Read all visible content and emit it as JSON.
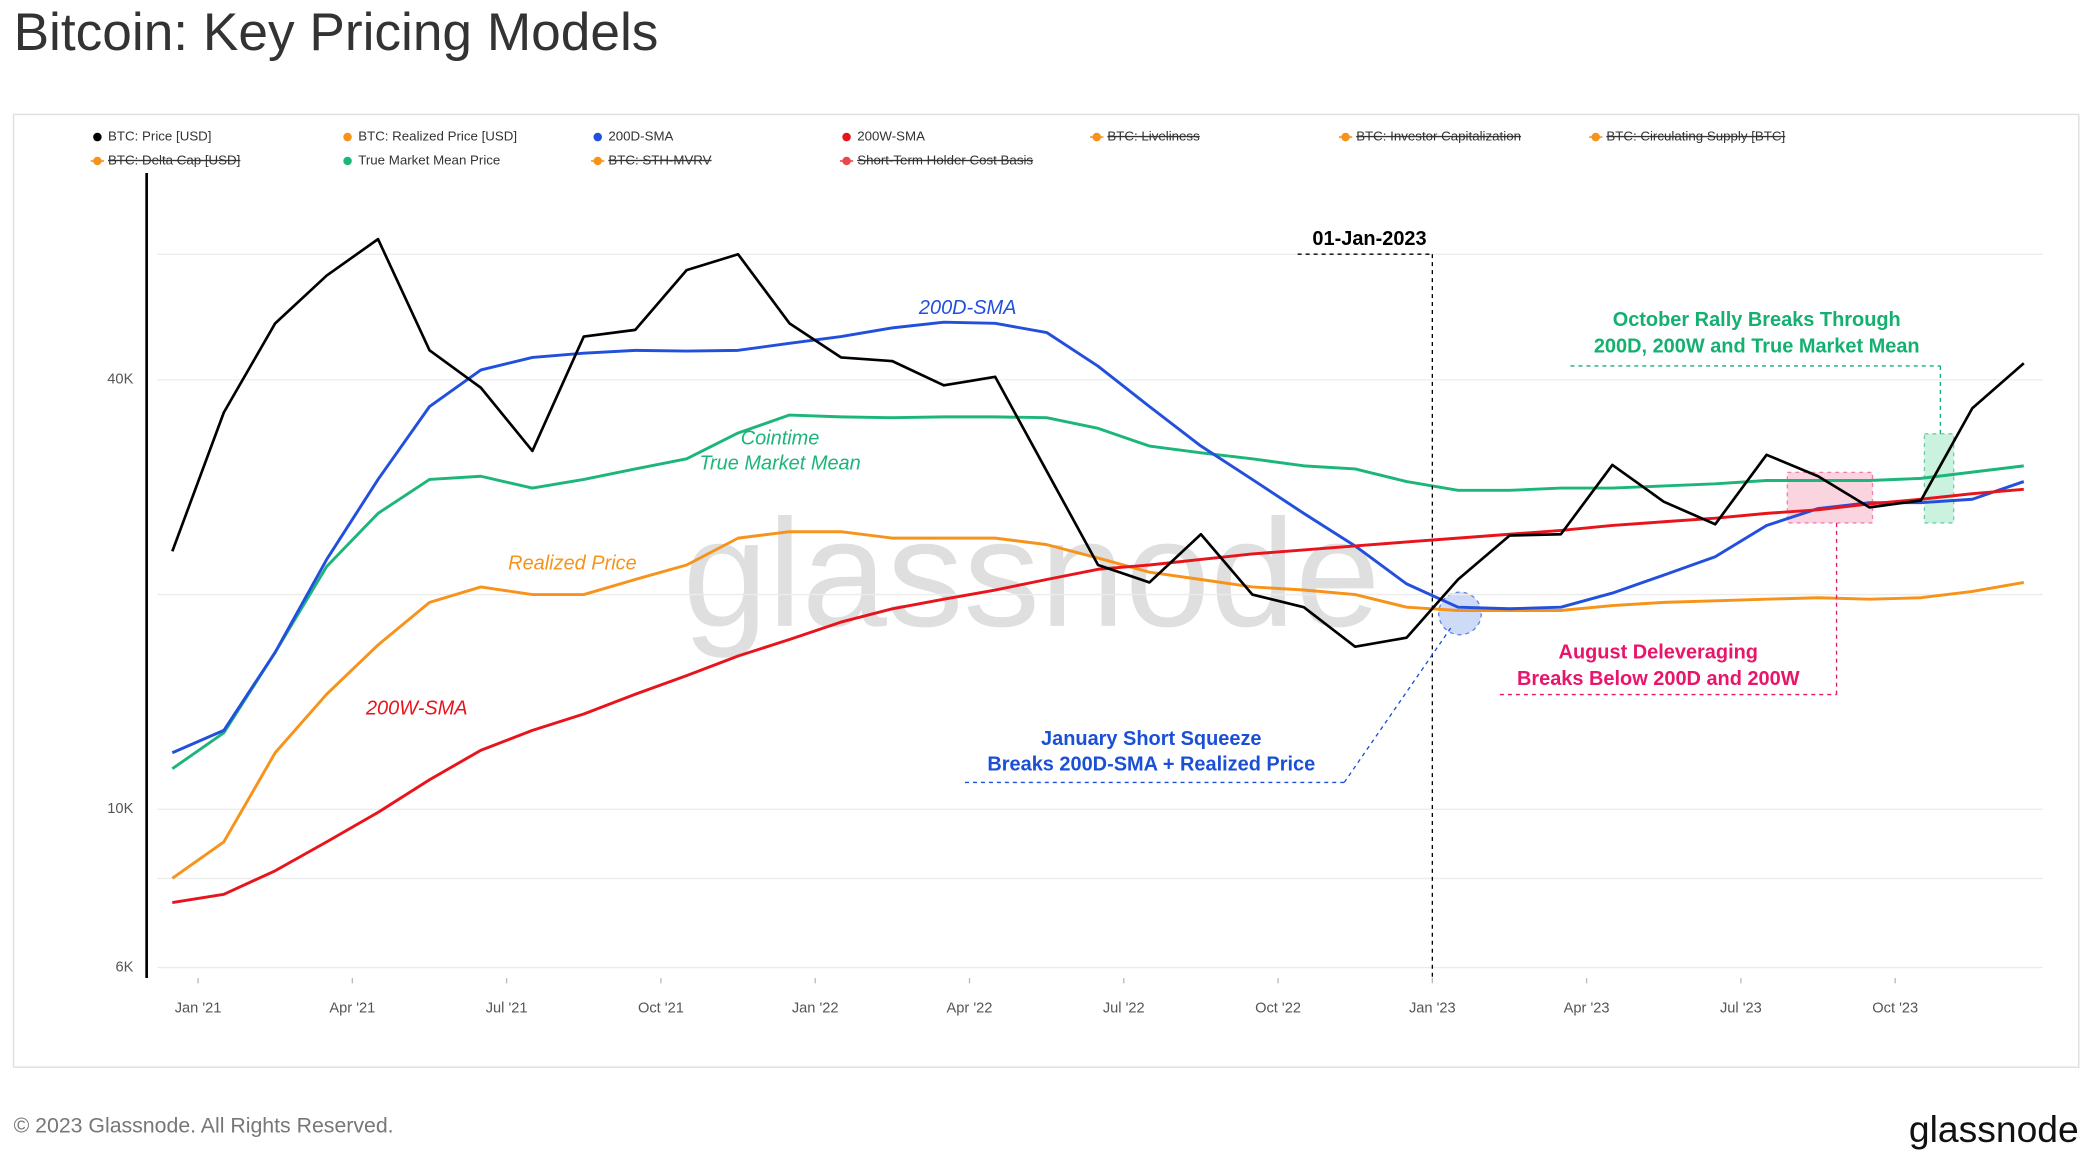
{
  "chart_data": {
    "type": "line",
    "title": "Bitcoin: Key Pricing Models",
    "watermark": "glassnode",
    "footer": "© 2023 Glassnode. All Rights Reserved.",
    "logo": "glassnode",
    "log_scale": true,
    "grid": true,
    "x": [
      "2020-12",
      "2021-01",
      "2021-02",
      "2021-03",
      "2021-04",
      "2021-05",
      "2021-06",
      "2021-07",
      "2021-08",
      "2021-09",
      "2021-10",
      "2021-11",
      "2021-12",
      "2022-01",
      "2022-02",
      "2022-03",
      "2022-04",
      "2022-05",
      "2022-06",
      "2022-07",
      "2022-08",
      "2022-09",
      "2022-10",
      "2022-11",
      "2022-12",
      "2023-01",
      "2023-02",
      "2023-03",
      "2023-04",
      "2023-05",
      "2023-06",
      "2023-07",
      "2023-08",
      "2023-09",
      "2023-10",
      "2023-11",
      "2023-12"
    ],
    "xlim": [
      "2020-12",
      "2024-01"
    ],
    "xticks": [
      {
        "value": "2021-01",
        "label": "Jan '21"
      },
      {
        "value": "2021-04",
        "label": "Apr '21"
      },
      {
        "value": "2021-07",
        "label": "Jul '21"
      },
      {
        "value": "2021-10",
        "label": "Oct '21"
      },
      {
        "value": "2022-01",
        "label": "Jan '22"
      },
      {
        "value": "2022-04",
        "label": "Apr '22"
      },
      {
        "value": "2022-07",
        "label": "Jul '22"
      },
      {
        "value": "2022-10",
        "label": "Oct '22"
      },
      {
        "value": "2023-01",
        "label": "Jan '23"
      },
      {
        "value": "2023-04",
        "label": "Apr '23"
      },
      {
        "value": "2023-07",
        "label": "Jul '23"
      },
      {
        "value": "2023-10",
        "label": "Oct '23"
      }
    ],
    "ylim": [
      5800,
      78000
    ],
    "yticks": [
      {
        "value": 6000,
        "label": "6K"
      },
      {
        "value": 8000,
        "label": null
      },
      {
        "value": 10000,
        "label": "10K"
      },
      {
        "value": 20000,
        "label": null
      },
      {
        "value": 40000,
        "label": "40K"
      },
      {
        "value": 60000,
        "label": null
      }
    ],
    "series": [
      {
        "name": "BTC: Price [USD]",
        "color": "#000000",
        "values": [
          23000,
          36000,
          48000,
          56000,
          63000,
          44000,
          39000,
          31800,
          46000,
          47000,
          57000,
          60000,
          48000,
          43000,
          42500,
          39300,
          40400,
          29800,
          22000,
          20800,
          24300,
          20000,
          19200,
          16900,
          17400,
          21000,
          24200,
          24300,
          30400,
          27000,
          25100,
          31400,
          29300,
          26500,
          27100,
          36500,
          42200
        ]
      },
      {
        "name": "BTC: Realized Price [USD]",
        "color": "#f7931a",
        "values": [
          8000,
          9000,
          12000,
          14500,
          17000,
          19500,
          20500,
          20000,
          20000,
          21000,
          22000,
          24000,
          24500,
          24500,
          24000,
          24000,
          24000,
          23500,
          22500,
          21500,
          21000,
          20500,
          20300,
          20000,
          19200,
          19000,
          19000,
          19000,
          19300,
          19500,
          19600,
          19700,
          19800,
          19700,
          19800,
          20200,
          20800
        ]
      },
      {
        "name": "200D-SMA",
        "color": "#2250dc",
        "values": [
          12000,
          12900,
          16600,
          22400,
          29000,
          36700,
          41300,
          43000,
          43600,
          44000,
          43900,
          44000,
          45000,
          46000,
          47300,
          48200,
          48000,
          46600,
          41800,
          36700,
          32300,
          29000,
          26000,
          23400,
          20700,
          19200,
          19100,
          19200,
          20100,
          21300,
          22600,
          25000,
          26400,
          26900,
          26900,
          27200,
          28800
        ]
      },
      {
        "name": "200W-SMA",
        "color": "#e8141c",
        "values": [
          7400,
          7600,
          8200,
          9000,
          9900,
          11000,
          12100,
          12900,
          13600,
          14500,
          15400,
          16400,
          17300,
          18300,
          19100,
          19700,
          20300,
          21000,
          21700,
          22000,
          22400,
          22800,
          23100,
          23400,
          23700,
          24000,
          24300,
          24600,
          25000,
          25300,
          25600,
          26000,
          26300,
          26800,
          27200,
          27700,
          28100
        ]
      },
      {
        "name": "BTC: Liveliness",
        "color": "#f7931a",
        "visible": false
      },
      {
        "name": "BTC: Investor Capitalization",
        "color": "#f7931a",
        "visible": false
      },
      {
        "name": "BTC: Circulating Supply [BTC]",
        "color": "#f7931a",
        "visible": false
      },
      {
        "name": "BTC: Delta Cap [USD]",
        "color": "#f7931a",
        "visible": false
      },
      {
        "name": "True Market Mean Price",
        "color": "#1db67a",
        "values": [
          11400,
          12800,
          16600,
          21900,
          26000,
          29000,
          29300,
          28200,
          29000,
          30000,
          31000,
          33700,
          35700,
          35500,
          35400,
          35500,
          35500,
          35400,
          34200,
          32300,
          31600,
          31000,
          30300,
          30000,
          28800,
          28000,
          28000,
          28200,
          28200,
          28400,
          28600,
          28900,
          28900,
          28900,
          29100,
          29700,
          30300
        ]
      },
      {
        "name": "BTC: STH-MVRV",
        "color": "#f7931a",
        "visible": false
      },
      {
        "name": "Short-Term Holder Cost Basis",
        "color": "#e84848",
        "visible": false
      }
    ],
    "annotations": [
      {
        "text": [
          "200D-SMA"
        ],
        "color": "#2250dc"
      },
      {
        "text": [
          "Cointime",
          "True Market Mean"
        ],
        "color": "#1db67a"
      },
      {
        "text": [
          "Realized Price"
        ],
        "color": "#f7931a"
      },
      {
        "text": [
          "200W-SMA"
        ],
        "color": "#e8141c"
      },
      {
        "text": [
          "01-Jan-2023"
        ],
        "color": "#000000",
        "x": "2023-01"
      },
      {
        "text": [
          "January Short Squeeze",
          "Breaks 200D-SMA + Realized Price"
        ],
        "color": "#1a4fd6"
      },
      {
        "text": [
          "August Deleveraging",
          "Breaks Below 200D and 200W"
        ],
        "color": "#e8156b"
      },
      {
        "text": [
          "October Rally Breaks Through",
          "200D, 200W and True Market Mean"
        ],
        "color": "#14b070"
      }
    ]
  }
}
